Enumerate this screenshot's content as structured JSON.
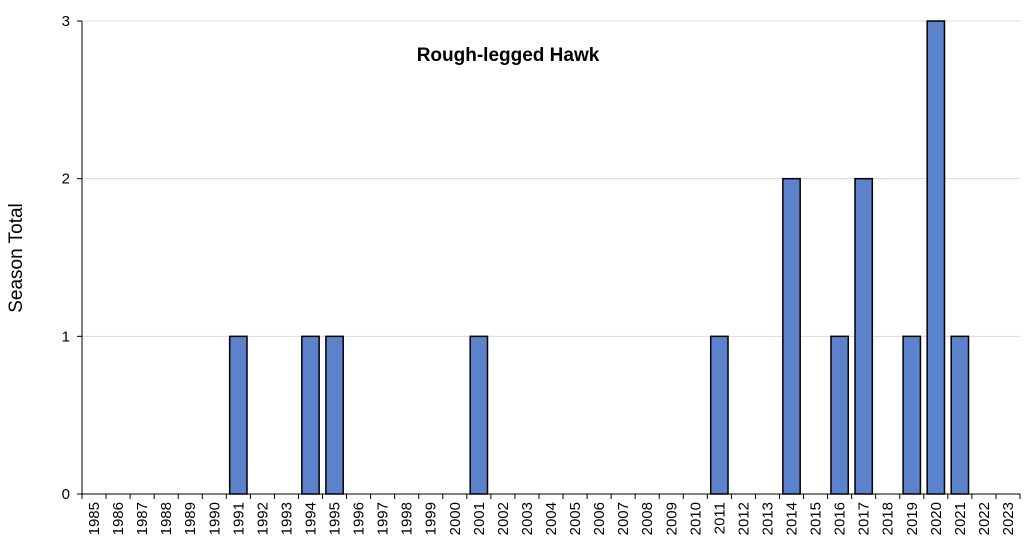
{
  "chart_data": {
    "type": "bar",
    "title": "Rough-legged Hawk",
    "xlabel": "",
    "ylabel": "Season Total",
    "ylim": [
      0,
      3
    ],
    "yticks": [
      0,
      1,
      2,
      3
    ],
    "grid": true,
    "legend": "none",
    "bar_color": "#5b82cb",
    "bar_edge_color": "#000000",
    "categories": [
      "1985",
      "1986",
      "1987",
      "1988",
      "1989",
      "1990",
      "1991",
      "1992",
      "1993",
      "1994",
      "1995",
      "1996",
      "1997",
      "1998",
      "1999",
      "2000",
      "2001",
      "2002",
      "2003",
      "2004",
      "2005",
      "2006",
      "2007",
      "2008",
      "2009",
      "2010",
      "2011",
      "2012",
      "2013",
      "2014",
      "2015",
      "2016",
      "2017",
      "2018",
      "2019",
      "2020",
      "2021",
      "2022",
      "2023"
    ],
    "values": [
      0,
      0,
      0,
      0,
      0,
      0,
      1,
      0,
      0,
      1,
      1,
      0,
      0,
      0,
      0,
      0,
      1,
      0,
      0,
      0,
      0,
      0,
      0,
      0,
      0,
      0,
      1,
      0,
      0,
      2,
      0,
      1,
      2,
      0,
      1,
      3,
      1,
      0,
      0
    ]
  }
}
